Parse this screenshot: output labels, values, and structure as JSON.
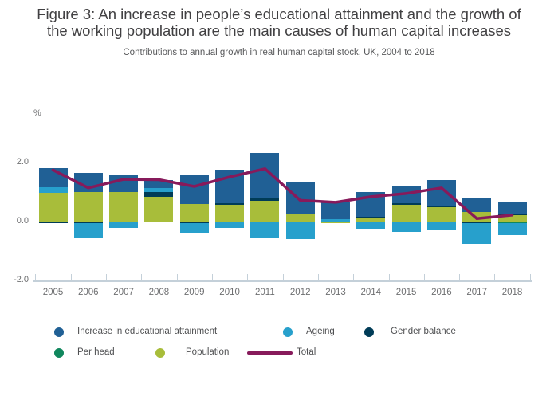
{
  "title_line1": "Figure 3: An increase in people’s educational attainment and the growth of",
  "title_line2": "the working population are the main causes of human capital increases",
  "subtitle": "Contributions to annual growth in real human capital stock, UK, 2004 to 2018",
  "y_axis": {
    "unit_label": "%",
    "ticks": [
      {
        "label": "2.0",
        "value": 2.0
      },
      {
        "label": "0.0",
        "value": 0.0
      },
      {
        "label": "-2.0",
        "value": -2.0
      }
    ],
    "gridline_values": [
      2.0,
      0.0
    ]
  },
  "chart_data": {
    "type": "bar",
    "subtype": "stacked-bar-with-total-line",
    "title": "Figure 3: An increase in people’s educational attainment and the growth of the working population are the main causes of human capital increases",
    "subtitle": "Contributions to annual growth in real human capital stock, UK, 2004 to 2018",
    "ylabel": "%",
    "ylim": [
      -2.0,
      2.0
    ],
    "grid": "horizontal",
    "legend_position": "bottom",
    "categories": [
      "2005",
      "2006",
      "2007",
      "2008",
      "2009",
      "2010",
      "2011",
      "2012",
      "2013",
      "2014",
      "2015",
      "2016",
      "2017",
      "2018"
    ],
    "stack_order": [
      "population",
      "gender_balance",
      "per_head",
      "ageing",
      "attainment"
    ],
    "series": [
      {
        "key": "attainment",
        "name": "Increase in educational attainment",
        "color": "#206095",
        "values": [
          0.63,
          0.65,
          0.57,
          0.27,
          0.99,
          1.15,
          1.55,
          1.06,
          0.6,
          0.84,
          0.59,
          0.86,
          0.46,
          0.39
        ]
      },
      {
        "key": "ageing",
        "name": "Ageing",
        "color": "#27A0CC",
        "values": [
          0.2,
          -0.53,
          -0.21,
          0.15,
          -0.34,
          -0.22,
          -0.57,
          -0.59,
          0.08,
          -0.25,
          -0.34,
          -0.3,
          -0.7,
          -0.41
        ]
      },
      {
        "key": "gender_balance",
        "name": "Gender balance",
        "color": "#003C57",
        "values": [
          -0.05,
          -0.05,
          0.0,
          0.15,
          -0.05,
          0.05,
          0.07,
          0.0,
          0.0,
          0.04,
          0.04,
          0.05,
          -0.05,
          0.05
        ]
      },
      {
        "key": "per_head",
        "name": "Per head",
        "color": "#10875D",
        "values": [
          0.0,
          0.0,
          0.0,
          0.0,
          0.0,
          0.0,
          0.0,
          0.0,
          0.0,
          0.0,
          0.0,
          0.0,
          0.0,
          -0.04
        ]
      },
      {
        "key": "population",
        "name": "Population",
        "color": "#A8BD3A",
        "values": [
          0.97,
          1.01,
          1.01,
          0.85,
          0.6,
          0.57,
          0.71,
          0.27,
          -0.05,
          0.13,
          0.58,
          0.49,
          0.33,
          0.21
        ]
      }
    ],
    "line_series": {
      "key": "total",
      "name": "Total",
      "color": "#871A5B",
      "values": [
        1.75,
        1.14,
        1.43,
        1.42,
        1.19,
        1.51,
        1.79,
        0.72,
        0.65,
        0.84,
        0.95,
        1.14,
        0.1,
        0.22
      ]
    }
  },
  "legend": {
    "row1_keys": [
      "attainment",
      "ageing",
      "gender_balance"
    ],
    "row2_keys": [
      "per_head",
      "population"
    ],
    "total_label": "Total"
  }
}
